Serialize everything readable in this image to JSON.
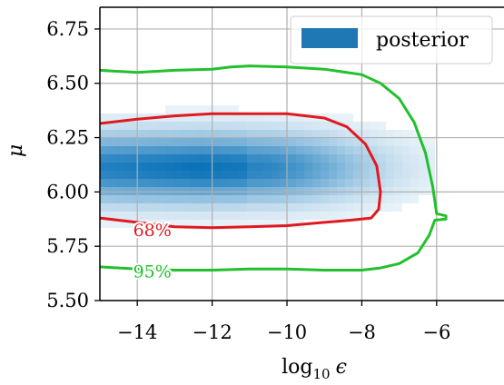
{
  "chart_data": {
    "type": "heatmap",
    "title": "",
    "xlabel_base": "log",
    "xlabel_sub": "10",
    "xlabel_var": "ϵ",
    "ylabel": "μ",
    "xlim": [
      -15.0,
      -4.2
    ],
    "ylim": [
      5.5,
      6.85
    ],
    "xticks": [
      -14,
      -12,
      -10,
      -8,
      -6
    ],
    "xtick_labels": [
      "−14",
      "−12",
      "−10",
      "−8",
      "−6"
    ],
    "yticks": [
      5.5,
      5.75,
      6.0,
      6.25,
      6.5,
      6.75
    ],
    "ytick_labels": [
      "5.50",
      "5.75",
      "6.00",
      "6.25",
      "6.50",
      "6.75"
    ],
    "grid": true,
    "legend": {
      "position": "top-right",
      "entries": [
        {
          "label": "posterior",
          "color": "#1f77b4"
        }
      ]
    },
    "density": {
      "color": "#0a72b8",
      "peak_x": -12.3,
      "peak_y": 6.11,
      "x_extent": [
        -15.0,
        -6.1
      ],
      "y_extent": [
        5.62,
        6.6
      ]
    },
    "contours": [
      {
        "label": "68%",
        "color": "#e0191f",
        "label_at": {
          "x": -13.6,
          "y": 5.825
        },
        "points": [
          [
            -15.0,
            6.315
          ],
          [
            -14.0,
            6.335
          ],
          [
            -13.0,
            6.35
          ],
          [
            -12.0,
            6.36
          ],
          [
            -11.0,
            6.36
          ],
          [
            -10.0,
            6.36
          ],
          [
            -9.0,
            6.34
          ],
          [
            -8.4,
            6.3
          ],
          [
            -7.9,
            6.22
          ],
          [
            -7.6,
            6.12
          ],
          [
            -7.5,
            6.0
          ],
          [
            -7.55,
            5.92
          ],
          [
            -7.75,
            5.88
          ],
          [
            -8.3,
            5.87
          ],
          [
            -9.0,
            5.86
          ],
          [
            -10.0,
            5.845
          ],
          [
            -11.0,
            5.84
          ],
          [
            -12.0,
            5.835
          ],
          [
            -13.0,
            5.84
          ],
          [
            -14.0,
            5.86
          ],
          [
            -15.0,
            5.88
          ]
        ]
      },
      {
        "label": "95%",
        "color": "#22c02d",
        "label_at": {
          "x": -13.6,
          "y": 5.635
        },
        "points": [
          [
            -15.0,
            6.56
          ],
          [
            -14.0,
            6.55
          ],
          [
            -13.0,
            6.56
          ],
          [
            -12.0,
            6.565
          ],
          [
            -11.5,
            6.575
          ],
          [
            -11.0,
            6.58
          ],
          [
            -10.0,
            6.575
          ],
          [
            -9.0,
            6.565
          ],
          [
            -8.0,
            6.54
          ],
          [
            -7.5,
            6.5
          ],
          [
            -7.0,
            6.43
          ],
          [
            -6.6,
            6.32
          ],
          [
            -6.3,
            6.18
          ],
          [
            -6.1,
            6.02
          ],
          [
            -6.0,
            5.9
          ],
          [
            -5.75,
            5.89
          ],
          [
            -5.75,
            5.875
          ],
          [
            -6.05,
            5.87
          ],
          [
            -6.2,
            5.8
          ],
          [
            -6.5,
            5.72
          ],
          [
            -7.0,
            5.67
          ],
          [
            -7.5,
            5.65
          ],
          [
            -8.0,
            5.64
          ],
          [
            -9.0,
            5.64
          ],
          [
            -10.0,
            5.645
          ],
          [
            -11.0,
            5.645
          ],
          [
            -12.0,
            5.64
          ],
          [
            -13.0,
            5.64
          ],
          [
            -14.0,
            5.645
          ],
          [
            -15.0,
            5.655
          ]
        ]
      }
    ]
  }
}
